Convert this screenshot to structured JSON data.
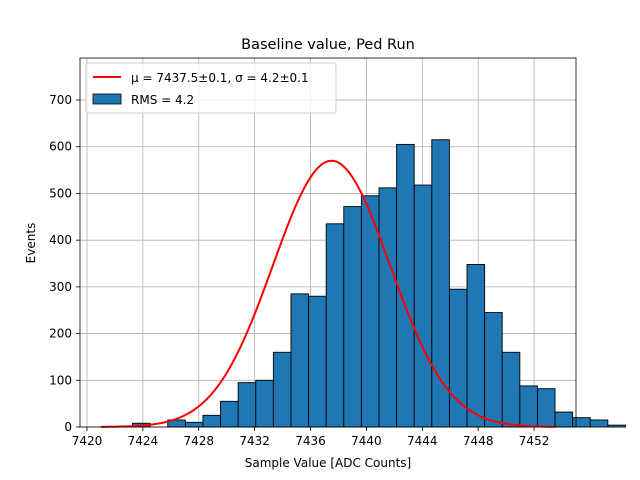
{
  "chart_data": {
    "type": "bar",
    "title": "Baseline value, Ped Run",
    "xlabel": "Sample Value [ADC Counts]",
    "ylabel": "Events",
    "xlim": [
      7419.5,
      7455
    ],
    "ylim": [
      0,
      790
    ],
    "xticks": [
      7420,
      7424,
      7428,
      7432,
      7436,
      7440,
      7444,
      7448,
      7452
    ],
    "yticks": [
      0,
      100,
      200,
      300,
      400,
      500,
      600,
      700
    ],
    "grid": true,
    "legend_position": "top-left",
    "histogram": {
      "name": "RMS = 4.2",
      "color": "#1f77b4",
      "bin_width": 1.26,
      "bin_edges_start": 7422.0,
      "values": [
        1,
        8,
        0,
        15,
        10,
        25,
        55,
        95,
        100,
        160,
        285,
        280,
        435,
        472,
        495,
        512,
        605,
        518,
        615,
        295,
        348,
        245,
        160,
        88,
        82,
        32,
        20,
        15,
        4
      ]
    },
    "fit": {
      "name": "μ = 7437.5±0.1, σ = 4.2±0.1",
      "color": "#ff0000",
      "mu": 7437.5,
      "sigma": 4.2,
      "amplitude": 570,
      "x_range": [
        7421.0,
        7453.5
      ]
    }
  }
}
